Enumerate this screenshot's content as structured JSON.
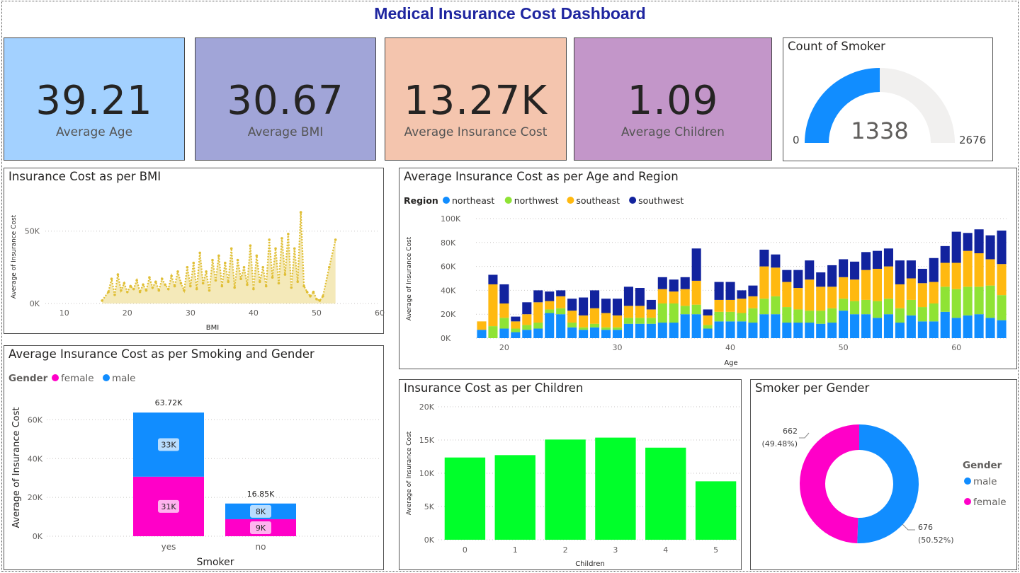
{
  "title": "Medical Insurance Cost Dashboard",
  "kpis": [
    {
      "value": "39.21",
      "label": "Average Age",
      "color": "#a3d1ff"
    },
    {
      "value": "30.67",
      "label": "Average BMI",
      "color": "#a1a5d8"
    },
    {
      "value": "13.27K",
      "label": "Average Insurance Cost",
      "color": "#f4c5ae"
    },
    {
      "value": "1.09",
      "label": "Average Children",
      "color": "#c396c9"
    }
  ],
  "gauge": {
    "title": "Count of Smoker",
    "value": 1338,
    "min": 0,
    "max": 2676,
    "value_label": "1338",
    "min_label": "0",
    "max_label": "2676",
    "fill_color": "#118dff",
    "track_color": "#f1f0ef"
  },
  "chart_data": [
    {
      "id": "bmi",
      "type": "area",
      "title": "Insurance Cost as per BMI",
      "xlabel": "BMI",
      "ylabel": "Average of Insurance Cost",
      "xlim": [
        7,
        60
      ],
      "ylim": [
        0,
        65000
      ],
      "xticks": [
        "10",
        "20",
        "30",
        "40",
        "50",
        "60"
      ],
      "yticks": [
        "0K",
        "50K"
      ],
      "color": "#e0bf36",
      "x": [
        16,
        17,
        17.5,
        18,
        18.5,
        19,
        19.5,
        20,
        20.5,
        21,
        21.5,
        22,
        22.5,
        23,
        23.5,
        24,
        24.5,
        25,
        25.5,
        26,
        26.5,
        27,
        27.5,
        28,
        28.5,
        29,
        29.5,
        30,
        30.5,
        31,
        31.5,
        32,
        32.5,
        33,
        33.5,
        34,
        34.5,
        35,
        35.5,
        36,
        36.5,
        37,
        37.5,
        38,
        38.5,
        39,
        39.5,
        40,
        40.5,
        41,
        41.5,
        42,
        42.5,
        43,
        43.5,
        44,
        44.5,
        45,
        45.5,
        46,
        46.5,
        47,
        47.5,
        48,
        48.5,
        49,
        49.5,
        50,
        50.5,
        51,
        52,
        53
      ],
      "y": [
        2000,
        8000,
        17000,
        6000,
        20000,
        9000,
        14000,
        8000,
        12000,
        10000,
        16000,
        8000,
        13000,
        9000,
        18000,
        11000,
        15000,
        9000,
        17000,
        13000,
        10000,
        19000,
        12000,
        22000,
        14000,
        9000,
        25000,
        12000,
        28000,
        10000,
        35000,
        14000,
        22000,
        9000,
        30000,
        16000,
        33000,
        12000,
        28000,
        15000,
        38000,
        11000,
        30000,
        17000,
        25000,
        13000,
        40000,
        10000,
        33000,
        15000,
        25000,
        12000,
        44000,
        18000,
        38000,
        14000,
        45000,
        20000,
        48000,
        11000,
        38000,
        15000,
        63000,
        12000,
        8000,
        5000,
        8000,
        3000,
        2000,
        5000,
        25000,
        44000
      ]
    },
    {
      "id": "age-region",
      "type": "bar",
      "title": "Average Insurance Cost as per Age and Region",
      "legend_title": "Region",
      "xlabel": "Age",
      "ylabel": "Average of Insurance Cost",
      "ylim": [
        0,
        100000
      ],
      "yticks": [
        "0K",
        "20K",
        "40K",
        "60K",
        "80K",
        "100K"
      ],
      "xticks": [
        "20",
        "30",
        "40",
        "50",
        "60"
      ],
      "categories": [
        18,
        19,
        20,
        21,
        22,
        23,
        24,
        25,
        26,
        27,
        28,
        29,
        30,
        31,
        32,
        33,
        34,
        35,
        36,
        37,
        38,
        39,
        40,
        41,
        42,
        43,
        44,
        45,
        46,
        47,
        48,
        49,
        50,
        51,
        52,
        53,
        54,
        55,
        56,
        57,
        58,
        59,
        60,
        61,
        62,
        63,
        64
      ],
      "series": [
        {
          "name": "northeast",
          "color": "#118dff",
          "values": [
            7000,
            0,
            8000,
            5000,
            7000,
            8000,
            21000,
            20000,
            9000,
            7000,
            9000,
            7000,
            7000,
            12000,
            12000,
            12000,
            13000,
            13000,
            20000,
            20000,
            8000,
            14000,
            14000,
            14000,
            13000,
            20000,
            20000,
            13000,
            13000,
            13000,
            12000,
            13000,
            23000,
            20000,
            20000,
            17000,
            20000,
            13000,
            19000,
            14000,
            14000,
            22000,
            17000,
            19000,
            20000,
            17000,
            15000
          ]
        },
        {
          "name": "northwest",
          "color": "#8fe335",
          "values": [
            0,
            10000,
            9000,
            3000,
            4000,
            5000,
            3000,
            5000,
            4000,
            2000,
            3000,
            2000,
            2000,
            5000,
            5000,
            5000,
            16000,
            16000,
            7000,
            8000,
            3000,
            8000,
            8000,
            7000,
            12000,
            13000,
            15000,
            13000,
            11000,
            10000,
            11000,
            12000,
            10000,
            11000,
            12000,
            14000,
            13000,
            12000,
            13000,
            12000,
            15000,
            21000,
            24000,
            24000,
            23000,
            27000,
            21000
          ]
        },
        {
          "name": "southeast",
          "color": "#ffb910",
          "values": [
            7000,
            35000,
            12000,
            6000,
            9000,
            17000,
            7000,
            10000,
            10000,
            10000,
            13000,
            12000,
            10000,
            10000,
            10000,
            7000,
            12000,
            10000,
            14000,
            20000,
            8000,
            10000,
            10000,
            12000,
            10000,
            27000,
            24000,
            21000,
            18000,
            26000,
            20000,
            18000,
            18000,
            18000,
            25000,
            27000,
            27000,
            20000,
            18000,
            20000,
            18000,
            20000,
            22000,
            30000,
            28000,
            22000,
            26000
          ]
        },
        {
          "name": "southwest",
          "color": "#12239e",
          "values": [
            0,
            8000,
            16000,
            4000,
            10000,
            10000,
            8000,
            5000,
            10000,
            15000,
            15000,
            12000,
            14000,
            16000,
            15000,
            8000,
            10000,
            10000,
            10000,
            27000,
            5000,
            15000,
            15000,
            7000,
            9000,
            14000,
            11000,
            10000,
            15000,
            16000,
            12000,
            18000,
            15000,
            15000,
            15000,
            15000,
            15000,
            20000,
            15000,
            12000,
            20000,
            14000,
            26000,
            15000,
            20000,
            20000,
            28000
          ]
        }
      ]
    },
    {
      "id": "smoking-gender",
      "type": "bar",
      "title": "Average Insurance Cost as per Smoking and Gender",
      "legend_title": "Gender",
      "xlabel": "Smoker",
      "ylabel": "Average of Insurance Cost",
      "ylim": [
        0,
        70000
      ],
      "yticks": [
        "0K",
        "20K",
        "40K",
        "60K"
      ],
      "categories": [
        "yes",
        "no"
      ],
      "totals": [
        "63.72K",
        "16.85K"
      ],
      "series": [
        {
          "name": "female",
          "color": "#ff00c8",
          "values": [
            30680,
            8760
          ],
          "labels": [
            "31K",
            "9K"
          ]
        },
        {
          "name": "male",
          "color": "#118dff",
          "values": [
            33040,
            8090
          ],
          "labels": [
            "33K",
            "8K"
          ]
        }
      ]
    },
    {
      "id": "children",
      "type": "bar",
      "title": "Insurance Cost as per Children",
      "xlabel": "Children",
      "ylabel": "Average of Insurance Cost",
      "ylim": [
        0,
        20000
      ],
      "yticks": [
        "0K",
        "5K",
        "10K",
        "15K",
        "20K"
      ],
      "color": "#00ff2a",
      "categories": [
        "0",
        "1",
        "2",
        "3",
        "4",
        "5"
      ],
      "values": [
        12370,
        12730,
        15070,
        15360,
        13850,
        8790
      ]
    },
    {
      "id": "smoker-gender",
      "type": "pie",
      "title": "Smoker per Gender",
      "legend_title": "Gender",
      "slices": [
        {
          "name": "male",
          "value": 676,
          "label": "676",
          "pct": "(50.52%)",
          "color": "#118dff"
        },
        {
          "name": "female",
          "value": 662,
          "label": "662",
          "pct": "(49.48%)",
          "color": "#ff00c8"
        }
      ]
    }
  ]
}
